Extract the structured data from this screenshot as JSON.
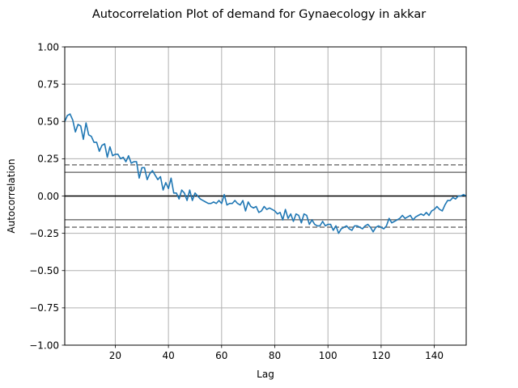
{
  "chart_data": {
    "type": "line",
    "title": "Autocorrelation Plot of demand for Gynaecology in akkar",
    "xlabel": "Lag",
    "ylabel": "Autocorrelation",
    "xlim": [
      1,
      152
    ],
    "ylim": [
      -1.0,
      1.0
    ],
    "x_ticks": [
      20,
      40,
      60,
      80,
      100,
      120,
      140
    ],
    "y_ticks": [
      {
        "v": 1.0,
        "label": "1.00"
      },
      {
        "v": 0.75,
        "label": "0.75"
      },
      {
        "v": 0.5,
        "label": "0.50"
      },
      {
        "v": 0.25,
        "label": "0.25"
      },
      {
        "v": 0.0,
        "label": "0.00"
      },
      {
        "v": -0.25,
        "label": "−0.25"
      },
      {
        "v": -0.5,
        "label": "−0.50"
      },
      {
        "v": -0.75,
        "label": "−0.75"
      },
      {
        "v": -1.0,
        "label": "−1.00"
      }
    ],
    "grid": true,
    "reference_lines": {
      "zero": 0.0,
      "ci95": 0.159,
      "ci99": 0.209
    },
    "colors": {
      "series": "#1f77b4",
      "zero_line": "#000000",
      "confidence": "#808080",
      "grid": "#b0b0b0"
    },
    "series": [
      {
        "x_start": 1,
        "values": [
          0.5,
          0.54,
          0.55,
          0.51,
          0.43,
          0.48,
          0.47,
          0.38,
          0.49,
          0.41,
          0.4,
          0.36,
          0.36,
          0.3,
          0.34,
          0.35,
          0.26,
          0.33,
          0.27,
          0.28,
          0.28,
          0.25,
          0.26,
          0.23,
          0.27,
          0.22,
          0.23,
          0.23,
          0.12,
          0.19,
          0.19,
          0.11,
          0.15,
          0.17,
          0.14,
          0.11,
          0.13,
          0.04,
          0.09,
          0.05,
          0.12,
          0.02,
          0.02,
          -0.02,
          0.04,
          0.02,
          -0.03,
          0.04,
          -0.03,
          0.02,
          0.0,
          -0.02,
          -0.03,
          -0.04,
          -0.05,
          -0.05,
          -0.04,
          -0.05,
          -0.03,
          -0.05,
          0.01,
          -0.06,
          -0.05,
          -0.05,
          -0.03,
          -0.05,
          -0.06,
          -0.03,
          -0.1,
          -0.04,
          -0.07,
          -0.08,
          -0.07,
          -0.11,
          -0.1,
          -0.07,
          -0.09,
          -0.08,
          -0.09,
          -0.1,
          -0.12,
          -0.11,
          -0.16,
          -0.09,
          -0.15,
          -0.12,
          -0.17,
          -0.12,
          -0.13,
          -0.18,
          -0.12,
          -0.13,
          -0.19,
          -0.16,
          -0.19,
          -0.2,
          -0.2,
          -0.17,
          -0.2,
          -0.19,
          -0.19,
          -0.23,
          -0.2,
          -0.25,
          -0.22,
          -0.21,
          -0.2,
          -0.22,
          -0.23,
          -0.2,
          -0.2,
          -0.21,
          -0.22,
          -0.2,
          -0.19,
          -0.21,
          -0.24,
          -0.21,
          -0.2,
          -0.21,
          -0.22,
          -0.2,
          -0.15,
          -0.18,
          -0.17,
          -0.16,
          -0.15,
          -0.13,
          -0.15,
          -0.14,
          -0.13,
          -0.16,
          -0.14,
          -0.13,
          -0.12,
          -0.13,
          -0.11,
          -0.13,
          -0.1,
          -0.09,
          -0.07,
          -0.09,
          -0.1,
          -0.06,
          -0.03,
          -0.03,
          -0.01,
          -0.02,
          0.0,
          0.0,
          0.01,
          0.0
        ]
      }
    ]
  }
}
